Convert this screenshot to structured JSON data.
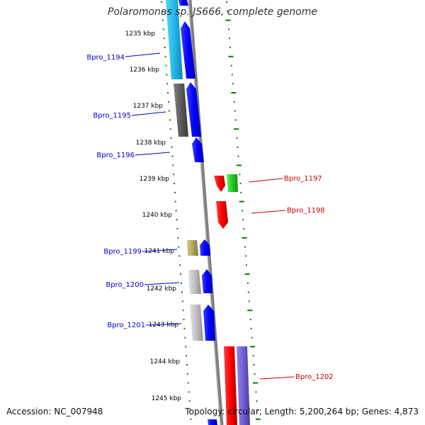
{
  "title": "Polaromonas sp. JS666, complete genome",
  "accession_label": "Accession: NC_007948",
  "topology_label": "Topology: circular; Length: 5,200,264 bp; Genes: 4,873",
  "kbp_ticks": [
    "1235 kbp",
    "1236 kbp",
    "1237 kbp",
    "1238 kbp",
    "1239 kbp",
    "1240 kbp",
    "1241 kbp",
    "1242 kbp",
    "1243 kbp",
    "1244 kbp",
    "1245 kbp"
  ],
  "genes_left": [
    {
      "label": "Bpro_1194",
      "color": "#0000cc"
    },
    {
      "label": "Bpro_1195",
      "color": "#0000cc"
    },
    {
      "label": "Bpro_1196",
      "color": "#0000cc"
    },
    {
      "label": "Bpro_1199",
      "color": "#0000cc"
    },
    {
      "label": "Bpro_1200",
      "color": "#0000cc"
    },
    {
      "label": "Bpro_1201",
      "color": "#0000cc"
    }
  ],
  "genes_right": [
    {
      "label": "Bpro_1197",
      "color": "#cc0000"
    },
    {
      "label": "Bpro_1198",
      "color": "#cc0000"
    },
    {
      "label": "Bpro_1202",
      "color": "#cc0000"
    }
  ],
  "colors": {
    "forward_strand": "#0000ff",
    "reverse_strand": "#ff0000",
    "tick_dots": "#008000",
    "backbone": "#808080",
    "cyan_feature": "#22b8e8",
    "dark_gray_feature": "#5a5a5a",
    "light_gray_feature": "#c0c0c0",
    "olive_feature": "#b0a860",
    "green_feature": "#22cc22",
    "purple_feature": "#7060d0"
  }
}
